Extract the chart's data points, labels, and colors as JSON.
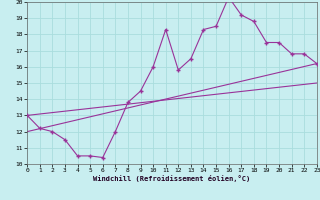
{
  "xlabel": "Windchill (Refroidissement éolien,°C)",
  "bg_color": "#c8eef0",
  "line_color": "#993399",
  "grid_color": "#aadddd",
  "xlim": [
    0,
    23
  ],
  "ylim": [
    10,
    20
  ],
  "xticks": [
    0,
    1,
    2,
    3,
    4,
    5,
    6,
    7,
    8,
    9,
    10,
    11,
    12,
    13,
    14,
    15,
    16,
    17,
    18,
    19,
    20,
    21,
    22,
    23
  ],
  "yticks": [
    10,
    11,
    12,
    13,
    14,
    15,
    16,
    17,
    18,
    19,
    20
  ],
  "line1_x": [
    0,
    1,
    2,
    3,
    4,
    5,
    6,
    7,
    8,
    9,
    10,
    11,
    12,
    13,
    14,
    15,
    16,
    17,
    18,
    19,
    20,
    21,
    22,
    23
  ],
  "line1_y": [
    13.0,
    12.2,
    12.0,
    11.5,
    10.5,
    10.5,
    10.4,
    12.0,
    13.8,
    14.5,
    16.0,
    18.3,
    15.8,
    16.5,
    18.3,
    18.5,
    20.3,
    19.2,
    18.8,
    17.5,
    17.5,
    16.8,
    16.8,
    16.2
  ],
  "line2_x": [
    0,
    23
  ],
  "line2_y": [
    12.0,
    16.2
  ],
  "line3_x": [
    0,
    23
  ],
  "line3_y": [
    13.0,
    15.0
  ]
}
